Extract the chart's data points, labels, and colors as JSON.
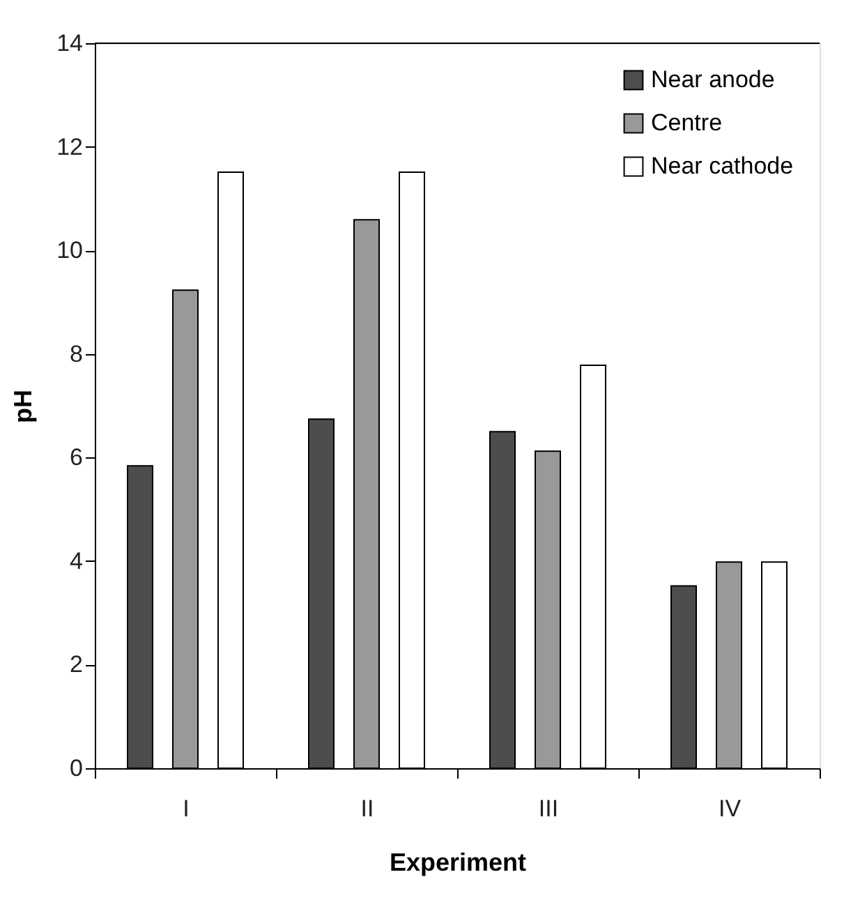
{
  "chart_data": {
    "type": "bar",
    "xlabel": "Experiment",
    "ylabel": "pH",
    "categories": [
      "I",
      "II",
      "III",
      "IV"
    ],
    "series": [
      {
        "name": "Near anode",
        "color": "#4d4d4d",
        "values": [
          5.84,
          6.74,
          6.5,
          3.52
        ]
      },
      {
        "name": "Centre",
        "color": "#999999",
        "values": [
          9.23,
          10.59,
          6.12,
          3.98
        ]
      },
      {
        "name": "Near cathode",
        "color": "#ffffff",
        "values": [
          11.51,
          11.51,
          7.78,
          3.98
        ]
      }
    ],
    "ylim": [
      0,
      14
    ],
    "yticks": [
      0,
      2,
      4,
      6,
      8,
      10,
      12,
      14
    ],
    "grid": false,
    "legend": "top right"
  }
}
